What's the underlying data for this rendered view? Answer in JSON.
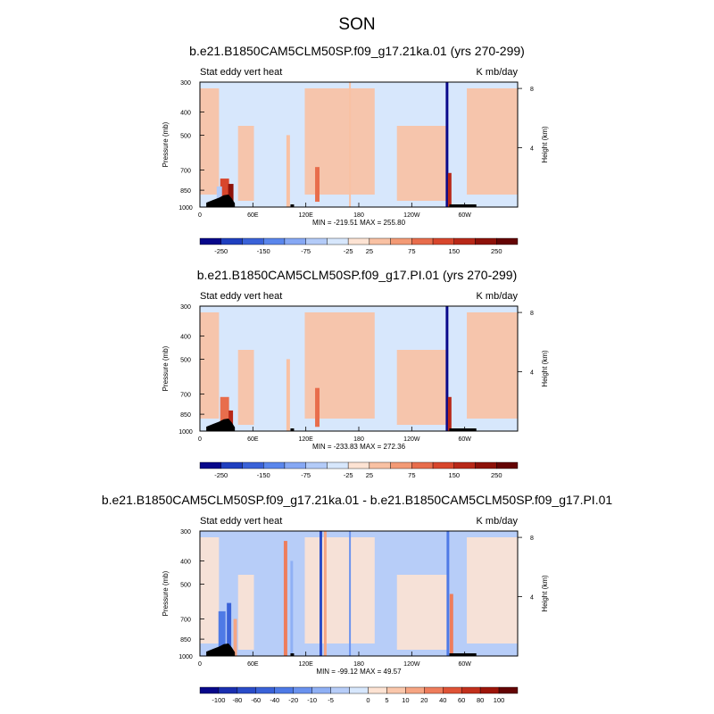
{
  "figure_title": "SON",
  "chart_data": [
    {
      "type": "heatmap",
      "title": "b.e21.B1850CAM5CLM50SP.f09_g17.21ka.01 (yrs 270-299)",
      "left_label": "Stat eddy vert heat",
      "right_label": "K mb/day",
      "ylabel": "Pressure (mb)",
      "ylabel_right": "Height (km)",
      "y_ticks": [
        "300",
        "400",
        "500",
        "700",
        "850",
        "1000"
      ],
      "y_tick_values": [
        300,
        400,
        500,
        700,
        850,
        1000
      ],
      "y_ticks_right": [
        "8",
        "4"
      ],
      "y_tick_right_values": [
        8,
        4
      ],
      "x_ticks": [
        "0",
        "60E",
        "120E",
        "180",
        "120W",
        "60W"
      ],
      "x_tick_values": [
        0,
        60,
        120,
        180,
        240,
        300
      ],
      "xlim": [
        0,
        360
      ],
      "ylim": [
        1000,
        300
      ],
      "min_max": "MIN = -219.51   MAX = 255.80",
      "colorbar": {
        "labels": [
          "-250",
          "-150",
          "-75",
          "-25",
          "25",
          "75",
          "150",
          "250"
        ],
        "colors": [
          "#08088a",
          "#1f3fbf",
          "#3a62d8",
          "#5a86ec",
          "#86a8f4",
          "#b3cbf8",
          "#d7e7fc",
          "#fde3d3",
          "#f9c1a3",
          "#f39a75",
          "#e86d4c",
          "#d8462c",
          "#b82818",
          "#8d1109",
          "#640404"
        ]
      },
      "features": [
        {
          "lon": 28,
          "width": 10,
          "p_top": 760,
          "p_bottom": 1000,
          "level": 11
        },
        {
          "lon": 35,
          "width": 6,
          "p_top": 800,
          "p_bottom": 1000,
          "level": 13
        },
        {
          "lon": 22,
          "width": 6,
          "p_top": 820,
          "p_bottom": 1000,
          "level": 5
        },
        {
          "lon": 100,
          "width": 4,
          "p_top": 500,
          "p_bottom": 1000,
          "level": 8
        },
        {
          "lon": 133,
          "width": 5,
          "p_top": 680,
          "p_bottom": 950,
          "level": 10
        },
        {
          "lon": 170,
          "width": 2,
          "p_top": 300,
          "p_bottom": 1000,
          "level": 8
        },
        {
          "lon": 280,
          "width": 3,
          "p_top": 300,
          "p_bottom": 1000,
          "level": 0
        },
        {
          "lon": 283,
          "width": 4,
          "p_top": 720,
          "p_bottom": 1000,
          "level": 12
        }
      ]
    },
    {
      "type": "heatmap",
      "title": "b.e21.B1850CAM5CLM50SP.f09_g17.PI.01 (yrs 270-299)",
      "left_label": "Stat eddy vert heat",
      "right_label": "K mb/day",
      "ylabel": "Pressure (mb)",
      "ylabel_right": "Height (km)",
      "y_ticks": [
        "300",
        "400",
        "500",
        "700",
        "850",
        "1000"
      ],
      "y_tick_values": [
        300,
        400,
        500,
        700,
        850,
        1000
      ],
      "y_ticks_right": [
        "8",
        "4"
      ],
      "y_tick_right_values": [
        8,
        4
      ],
      "x_ticks": [
        "0",
        "60E",
        "120E",
        "180",
        "120W",
        "60W"
      ],
      "x_tick_values": [
        0,
        60,
        120,
        180,
        240,
        300
      ],
      "xlim": [
        0,
        360
      ],
      "ylim": [
        1000,
        300
      ],
      "min_max": "MIN = -233.83   MAX = 272.36",
      "colorbar": {
        "labels": [
          "-250",
          "-150",
          "-75",
          "-25",
          "25",
          "75",
          "150",
          "250"
        ],
        "colors": [
          "#08088a",
          "#1f3fbf",
          "#3a62d8",
          "#5a86ec",
          "#86a8f4",
          "#b3cbf8",
          "#d7e7fc",
          "#fde3d3",
          "#f9c1a3",
          "#f39a75",
          "#e86d4c",
          "#d8462c",
          "#b82818",
          "#8d1109",
          "#640404"
        ]
      },
      "features": [
        {
          "lon": 28,
          "width": 10,
          "p_top": 720,
          "p_bottom": 1000,
          "level": 10
        },
        {
          "lon": 35,
          "width": 5,
          "p_top": 820,
          "p_bottom": 1000,
          "level": 12
        },
        {
          "lon": 100,
          "width": 4,
          "p_top": 500,
          "p_bottom": 1000,
          "level": 8
        },
        {
          "lon": 133,
          "width": 5,
          "p_top": 660,
          "p_bottom": 960,
          "level": 10
        },
        {
          "lon": 280,
          "width": 3,
          "p_top": 300,
          "p_bottom": 1000,
          "level": 0
        },
        {
          "lon": 283,
          "width": 4,
          "p_top": 720,
          "p_bottom": 1000,
          "level": 12
        }
      ]
    },
    {
      "type": "heatmap",
      "title": "b.e21.B1850CAM5CLM50SP.f09_g17.21ka.01 - b.e21.B1850CAM5CLM50SP.f09_g17.PI.01",
      "left_label": "Stat eddy vert heat",
      "right_label": "K mb/day",
      "ylabel": "Pressure (mb)",
      "ylabel_right": "Height (km)",
      "y_ticks": [
        "300",
        "400",
        "500",
        "700",
        "850",
        "1000"
      ],
      "y_tick_values": [
        300,
        400,
        500,
        700,
        850,
        1000
      ],
      "y_ticks_right": [
        "8",
        "4"
      ],
      "y_tick_right_values": [
        8,
        4
      ],
      "x_ticks": [
        "0",
        "60E",
        "120E",
        "180",
        "120W",
        "60W"
      ],
      "x_tick_values": [
        0,
        60,
        120,
        180,
        240,
        300
      ],
      "xlim": [
        0,
        360
      ],
      "ylim": [
        1000,
        300
      ],
      "min_max": "MIN = -99.12   MAX = 49.57",
      "colorbar": {
        "labels": [
          "-100",
          "-80",
          "-60",
          "-40",
          "-20",
          "-10",
          "-5",
          "0",
          "5",
          "10",
          "20",
          "40",
          "60",
          "80",
          "100"
        ],
        "colors": [
          "#08088a",
          "#1a2fb0",
          "#2a4cc8",
          "#3a62d8",
          "#4e7ae6",
          "#6a92ee",
          "#8fb0f4",
          "#b7cdf8",
          "#d7e7fc",
          "#fde3d3",
          "#fac7ab",
          "#f6a583",
          "#ee7d5c",
          "#df5336",
          "#c2301c",
          "#9d1509",
          "#640404"
        ]
      },
      "features": [
        {
          "lon": 25,
          "width": 8,
          "p_top": 650,
          "p_bottom": 1000,
          "level": 4
        },
        {
          "lon": 33,
          "width": 5,
          "p_top": 600,
          "p_bottom": 1000,
          "level": 3
        },
        {
          "lon": 40,
          "width": 4,
          "p_top": 700,
          "p_bottom": 1000,
          "level": 11
        },
        {
          "lon": 97,
          "width": 4,
          "p_top": 330,
          "p_bottom": 1000,
          "level": 12
        },
        {
          "lon": 104,
          "width": 3,
          "p_top": 400,
          "p_bottom": 1000,
          "level": 6
        },
        {
          "lon": 137,
          "width": 3,
          "p_top": 300,
          "p_bottom": 1000,
          "level": 2
        },
        {
          "lon": 142,
          "width": 3,
          "p_top": 300,
          "p_bottom": 1000,
          "level": 11
        },
        {
          "lon": 170,
          "width": 2,
          "p_top": 300,
          "p_bottom": 1000,
          "level": 5
        },
        {
          "lon": 281,
          "width": 3,
          "p_top": 300,
          "p_bottom": 1000,
          "level": 4
        },
        {
          "lon": 285,
          "width": 4,
          "p_top": 550,
          "p_bottom": 1000,
          "level": 12
        }
      ]
    }
  ]
}
